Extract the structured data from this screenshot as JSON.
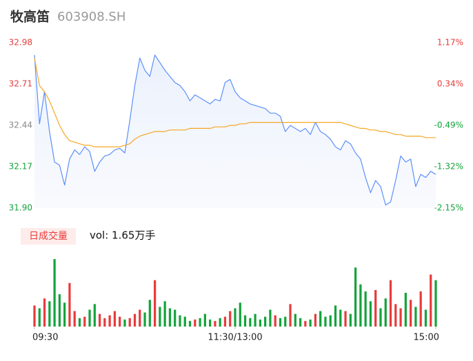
{
  "chart_data": [
    {
      "type": "line",
      "title": "牧高笛",
      "subtitle": "603908.SH",
      "x": [
        0,
        3,
        6,
        9,
        12,
        15,
        18,
        21,
        24,
        27,
        30,
        33,
        36,
        39,
        42,
        45,
        48,
        51,
        54,
        57,
        60,
        63,
        66,
        69,
        72,
        75,
        78,
        81,
        84,
        87,
        90,
        93,
        96,
        99,
        102,
        105,
        108,
        111,
        114,
        117,
        120,
        123,
        126,
        129,
        132,
        135,
        138,
        141,
        144,
        147,
        150,
        153,
        156,
        159,
        162,
        165,
        168,
        171,
        174,
        177,
        180,
        183,
        186,
        189,
        192,
        195,
        198,
        201,
        204,
        207,
        210,
        213,
        216,
        219,
        222,
        225,
        228,
        231,
        234,
        237,
        240
      ],
      "xlim": [
        0,
        240
      ],
      "series": [
        {
          "color": "#5b8ff9",
          "values": [
            32.9,
            32.45,
            32.66,
            32.4,
            32.2,
            32.18,
            32.05,
            32.22,
            32.28,
            32.25,
            32.3,
            32.27,
            32.14,
            32.2,
            32.24,
            32.25,
            32.28,
            32.29,
            32.26,
            32.47,
            32.7,
            32.88,
            32.8,
            32.76,
            32.9,
            32.85,
            32.8,
            32.76,
            32.72,
            32.7,
            32.66,
            32.6,
            32.64,
            32.62,
            32.6,
            32.58,
            32.61,
            32.6,
            32.72,
            32.74,
            32.66,
            32.62,
            32.6,
            32.58,
            32.57,
            32.56,
            32.55,
            32.52,
            32.52,
            32.5,
            32.4,
            32.44,
            32.42,
            32.4,
            32.42,
            32.38,
            32.46,
            32.4,
            32.38,
            32.35,
            32.3,
            32.28,
            32.34,
            32.32,
            32.26,
            32.22,
            32.1,
            32.0,
            32.08,
            32.04,
            31.92,
            31.94,
            32.08,
            32.24,
            32.2,
            32.22,
            32.04,
            32.12,
            32.1,
            32.14,
            32.12
          ]
        },
        {
          "color": "#f5a623",
          "values": [
            32.88,
            32.7,
            32.66,
            32.6,
            32.52,
            32.44,
            32.38,
            32.34,
            32.33,
            32.32,
            32.31,
            32.31,
            32.3,
            32.3,
            32.3,
            32.3,
            32.3,
            32.3,
            32.31,
            32.32,
            32.35,
            32.37,
            32.38,
            32.39,
            32.4,
            32.4,
            32.4,
            32.41,
            32.41,
            32.41,
            32.41,
            32.42,
            32.42,
            32.42,
            32.42,
            32.42,
            32.43,
            32.43,
            32.43,
            32.44,
            32.44,
            32.45,
            32.45,
            32.46,
            32.46,
            32.46,
            32.46,
            32.46,
            32.46,
            32.46,
            32.46,
            32.46,
            32.46,
            32.46,
            32.46,
            32.46,
            32.46,
            32.46,
            32.46,
            32.46,
            32.46,
            32.46,
            32.45,
            32.44,
            32.43,
            32.42,
            32.42,
            32.41,
            32.41,
            32.4,
            32.4,
            32.39,
            32.38,
            32.38,
            32.37,
            32.37,
            32.37,
            32.37,
            32.36,
            32.36,
            32.36
          ]
        }
      ],
      "ylim": [
        31.9,
        32.98
      ],
      "yticks": [
        32.98,
        32.71,
        32.44,
        32.17,
        {
          "value": 31.9,
          "label": "31.90"
        }
      ],
      "y2lim": [
        -2.15,
        1.17
      ],
      "y2ticks": [
        {
          "value": 1.17,
          "label": "1.17%"
        },
        {
          "value": 0.34,
          "label": "0.34%"
        },
        {
          "value": -0.49,
          "label": "-0.49%"
        },
        {
          "value": -1.32,
          "label": "-1.32%"
        },
        {
          "value": -2.15,
          "label": "-2.15%"
        }
      ],
      "up_color": "#e83b3b",
      "flat_color": "#888888",
      "down_color": "#14a33b"
    },
    {
      "type": "bar",
      "label": "日成交量",
      "volume_label": "vol: 1.65万手",
      "x": [
        0,
        3,
        6,
        9,
        12,
        15,
        18,
        21,
        24,
        27,
        30,
        33,
        36,
        39,
        42,
        45,
        48,
        51,
        54,
        57,
        60,
        63,
        66,
        69,
        72,
        75,
        78,
        81,
        84,
        87,
        90,
        93,
        96,
        99,
        102,
        105,
        108,
        111,
        114,
        117,
        120,
        123,
        126,
        129,
        132,
        135,
        138,
        141,
        144,
        147,
        150,
        153,
        156,
        159,
        162,
        165,
        168,
        171,
        174,
        177,
        180,
        183,
        186,
        189,
        192,
        195,
        198,
        201,
        204,
        207,
        210,
        213,
        216,
        219,
        222,
        225,
        228,
        231,
        234,
        237,
        240
      ],
      "xlim": [
        0,
        240
      ],
      "xticks": [
        {
          "value": 0,
          "label": "09:30"
        },
        {
          "value": 120,
          "label": "11:30/13:00"
        },
        {
          "value": 240,
          "label": "15:00"
        }
      ],
      "values": [
        150,
        130,
        200,
        180,
        480,
        230,
        170,
        310,
        110,
        60,
        70,
        120,
        160,
        90,
        60,
        80,
        110,
        70,
        50,
        60,
        90,
        120,
        100,
        190,
        330,
        140,
        180,
        130,
        120,
        80,
        70,
        40,
        50,
        60,
        90,
        50,
        40,
        60,
        70,
        110,
        130,
        170,
        80,
        60,
        90,
        50,
        70,
        120,
        80,
        60,
        70,
        160,
        90,
        60,
        40,
        50,
        90,
        110,
        70,
        80,
        150,
        120,
        110,
        90,
        420,
        300,
        250,
        180,
        260,
        130,
        200,
        330,
        160,
        130,
        240,
        190,
        140,
        250,
        120,
        370,
        330
      ],
      "ylim": [
        0,
        500
      ],
      "up_color": "#e83b3b",
      "down_color": "#14a33b"
    }
  ]
}
